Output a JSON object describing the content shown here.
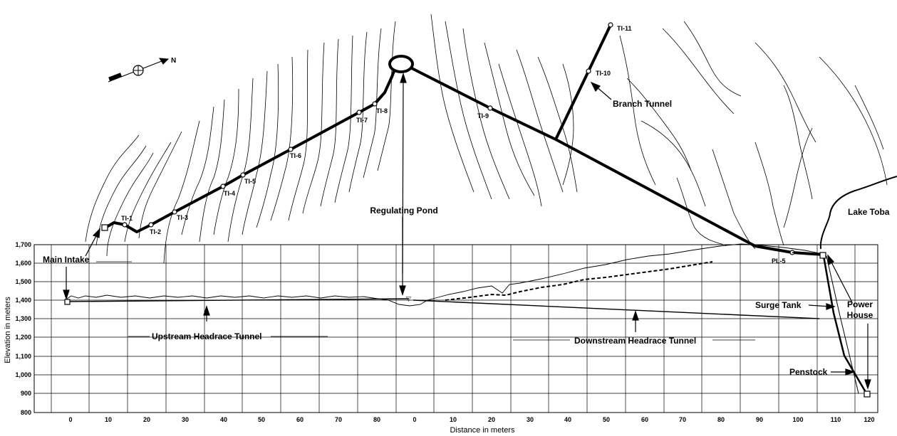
{
  "plan": {
    "north_label": "N",
    "stations": [
      "TI-1",
      "TI-2",
      "TI-3",
      "TI-4",
      "TI-5",
      "TI-6",
      "TI-7",
      "TI-8",
      "TI-9",
      "TI-10",
      "TI-11",
      "PL-5"
    ]
  },
  "labels": {
    "regulating_pond": "Regulating Pond",
    "branch_tunnel": "Branch Tunnel",
    "lake_toba": "Lake Toba",
    "main_intake": "Main Intake",
    "upstream_tunnel": "Upstream Headrace Tunnel",
    "downstream_tunnel": "Downstream Headrace Tunnel",
    "surge_tank": "Surge Tank",
    "power_house_line1": "Power",
    "power_house_line2": "House",
    "penstock": "Penstock"
  },
  "profile": {
    "xlabel": "Distance in meters",
    "ylabel": "Elevation in meters",
    "y_ticks": [
      "1,700",
      "1,600",
      "1,500",
      "1,400",
      "1,300",
      "1,200",
      "1,100",
      "1,000",
      "900",
      "800"
    ],
    "x_ticks": [
      "0",
      "10",
      "20",
      "30",
      "40",
      "50",
      "60",
      "70",
      "80",
      "0",
      "10",
      "20",
      "30",
      "40",
      "50",
      "60",
      "70",
      "80",
      "90",
      "100",
      "110",
      "120"
    ]
  }
}
